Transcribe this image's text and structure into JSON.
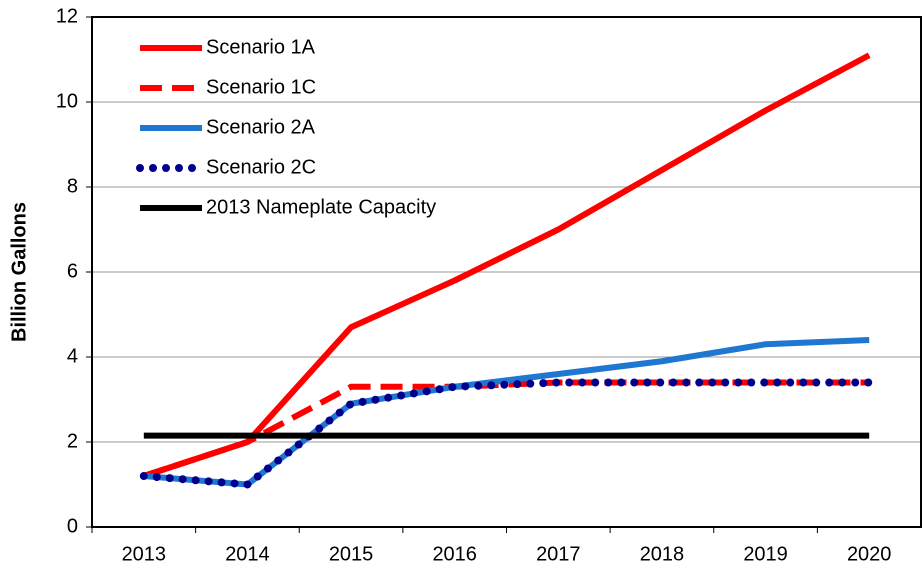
{
  "chart_data": {
    "type": "line",
    "y_label": "Billion Gallons",
    "categories": [
      "2013",
      "2014",
      "2015",
      "2016",
      "2017",
      "2018",
      "2019",
      "2020"
    ],
    "series": [
      {
        "name": "Scenario 1A",
        "color": "#ff0000",
        "style": "solid",
        "values": [
          1.2,
          2.0,
          4.7,
          5.8,
          7.0,
          8.4,
          9.8,
          11.1
        ]
      },
      {
        "name": "Scenario 1C",
        "color": "#ff0000",
        "style": "dashed",
        "values": [
          1.2,
          2.0,
          3.3,
          3.3,
          3.4,
          3.4,
          3.4,
          3.4
        ]
      },
      {
        "name": "Scenario 2A",
        "color": "#1f77d0",
        "style": "solid",
        "values": [
          1.2,
          1.0,
          2.9,
          3.3,
          3.6,
          3.9,
          4.3,
          4.4
        ]
      },
      {
        "name": "Scenario 2C",
        "color": "#00008b",
        "style": "dotted",
        "values": [
          1.2,
          1.0,
          2.9,
          3.3,
          3.4,
          3.4,
          3.4,
          3.4
        ]
      },
      {
        "name": "2013 Nameplate Capacity",
        "color": "#000000",
        "style": "solid",
        "values": [
          2.15,
          2.15,
          2.15,
          2.15,
          2.15,
          2.15,
          2.15,
          2.15
        ]
      }
    ],
    "ylim": [
      0,
      12
    ],
    "yticks": [
      0,
      2,
      4,
      6,
      8,
      10,
      12
    ],
    "grid": true,
    "legend": "upper left"
  }
}
